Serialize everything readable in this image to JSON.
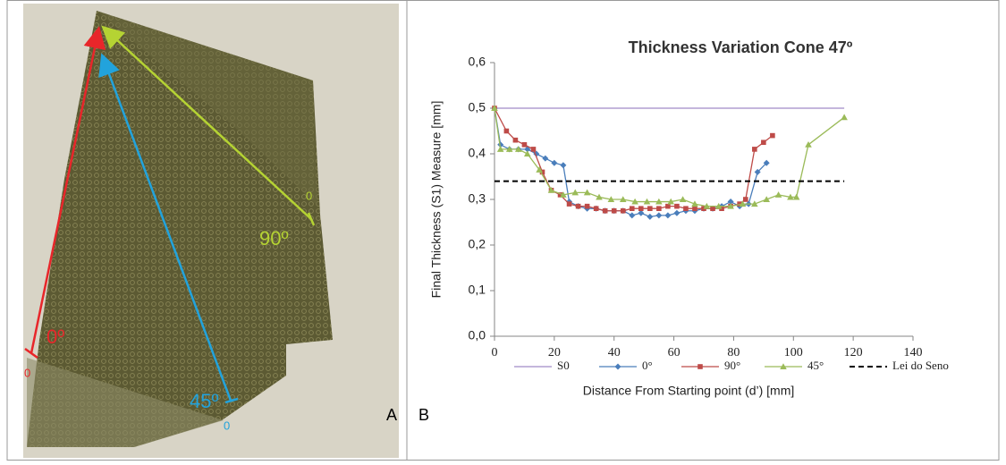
{
  "photo_labels": {
    "red": "0º",
    "blue": "45º",
    "green": "90º",
    "origins": [
      "0",
      "0",
      "0"
    ]
  },
  "panel_labels": [
    "A",
    "B"
  ],
  "chart_data": {
    "type": "line",
    "title": "Thickness Variation Cone 47º",
    "xlabel": "Distance From Starting point (d’) [mm]",
    "ylabel": "Final Thickness (S1) Measure [mm]",
    "xlim": [
      0,
      140
    ],
    "xticks": [
      0,
      20,
      40,
      60,
      80,
      100,
      120,
      140
    ],
    "ylim": [
      0,
      0.6
    ],
    "yticks": [
      {
        "value": 0,
        "label": "0,0"
      },
      {
        "value": 0.1,
        "label": "0,1"
      },
      {
        "value": 0.2,
        "label": "0,2"
      },
      {
        "value": 0.3,
        "label": "0,3"
      },
      {
        "value": 0.4,
        "label": "0,4"
      },
      {
        "value": 0.5,
        "label": "0,5"
      },
      {
        "value": 0.6,
        "label": "0,6"
      }
    ],
    "grid": false,
    "legend": "bottom",
    "series": [
      {
        "name": "S0",
        "color": "#a08ac8",
        "marker": "none",
        "dash": false,
        "x": [
          0,
          117
        ],
        "values": [
          0.5,
          0.5
        ]
      },
      {
        "name": "0°",
        "color": "#4a7ebb",
        "marker": "diamond",
        "dash": false,
        "x": [
          0,
          2,
          5,
          8,
          11,
          14,
          17,
          20,
          23,
          25,
          28,
          31,
          34,
          37,
          40,
          43,
          46,
          49,
          52,
          55,
          58,
          61,
          64,
          67,
          70,
          73,
          76,
          79,
          82,
          85,
          88,
          91
        ],
        "values": [
          0.5,
          0.42,
          0.41,
          0.41,
          0.41,
          0.4,
          0.39,
          0.38,
          0.375,
          0.295,
          0.285,
          0.28,
          0.28,
          0.275,
          0.275,
          0.275,
          0.265,
          0.27,
          0.262,
          0.265,
          0.265,
          0.27,
          0.275,
          0.275,
          0.28,
          0.28,
          0.285,
          0.295,
          0.285,
          0.29,
          0.36,
          0.38
        ]
      },
      {
        "name": "90°",
        "color": "#be4b48",
        "marker": "square",
        "dash": false,
        "x": [
          0,
          4,
          7,
          10,
          13,
          16,
          19,
          22,
          25,
          28,
          31,
          34,
          37,
          40,
          43,
          46,
          49,
          52,
          55,
          58,
          61,
          64,
          67,
          70,
          73,
          76,
          79,
          82,
          84,
          87,
          90,
          93
        ],
        "values": [
          0.5,
          0.45,
          0.43,
          0.42,
          0.41,
          0.36,
          0.32,
          0.31,
          0.29,
          0.285,
          0.285,
          0.28,
          0.275,
          0.275,
          0.275,
          0.28,
          0.28,
          0.28,
          0.28,
          0.285,
          0.285,
          0.28,
          0.28,
          0.28,
          0.28,
          0.28,
          0.285,
          0.29,
          0.3,
          0.41,
          0.425,
          0.44
        ]
      },
      {
        "name": "45°",
        "color": "#9bbb59",
        "marker": "triangle",
        "dash": false,
        "x": [
          0,
          2,
          5,
          8,
          11,
          15,
          19,
          23,
          27,
          31,
          35,
          39,
          43,
          47,
          51,
          55,
          59,
          63,
          67,
          71,
          75,
          79,
          83,
          87,
          91,
          95,
          99,
          101,
          105,
          117
        ],
        "values": [
          0.5,
          0.41,
          0.41,
          0.41,
          0.4,
          0.365,
          0.32,
          0.31,
          0.315,
          0.315,
          0.305,
          0.3,
          0.3,
          0.295,
          0.295,
          0.295,
          0.295,
          0.3,
          0.29,
          0.285,
          0.285,
          0.285,
          0.29,
          0.29,
          0.3,
          0.31,
          0.305,
          0.305,
          0.42,
          0.48
        ]
      },
      {
        "name": "Lei do Seno",
        "color": "#000000",
        "marker": "none",
        "dash": true,
        "x": [
          0,
          117
        ],
        "values": [
          0.34,
          0.34
        ]
      }
    ]
  }
}
